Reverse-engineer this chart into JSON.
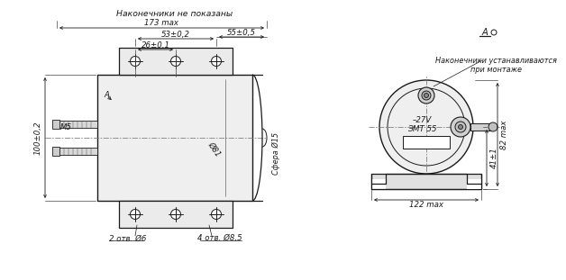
{
  "bg_color": "#ffffff",
  "lc": "#1a1a1a",
  "dim_c": "#1a1a1a",
  "gray_fill": "#e8e8e8",
  "title": "Наконечники не показаны",
  "note_right": "Наконечники устанавливаются\nпри монтаже",
  "label_27v": "–27V",
  "label_emt": "ЭМТ 55",
  "lbl_bot_left": "2 отв. Ø6",
  "lbl_bot_right": "4 отв. Ø8,5",
  "d173": "173 max",
  "d53": "53±0,2",
  "d55": "55±0,5",
  "d26": "26±0,1",
  "d100": "100±0,2",
  "dM5": "M5",
  "d81": "Ø81",
  "d15": "Сфера Ø15",
  "dA": "A",
  "d82": "82 max",
  "d41": "41±1",
  "d122": "122 max"
}
